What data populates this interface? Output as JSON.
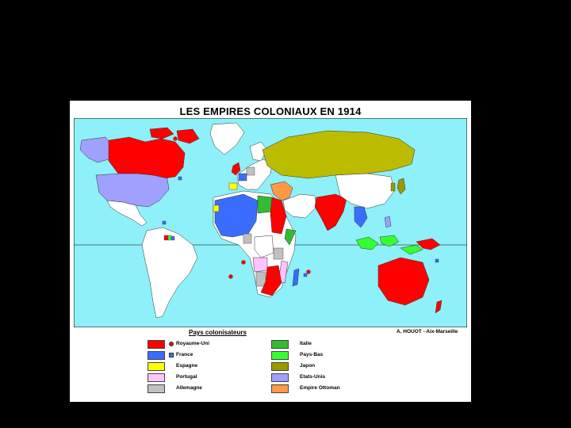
{
  "map": {
    "title": "LES EMPIRES COLONIAUX EN 1914",
    "credit": "A. HOUOT - Aix-Marseille",
    "ocean_color": "#8ef0f8"
  },
  "legend": {
    "title": "Pays colonisateurs",
    "items": [
      {
        "label": "Royaume-Uni",
        "color": "#ff0000",
        "marker": "circle"
      },
      {
        "label": "France",
        "color": "#3a6cff",
        "marker": "square"
      },
      {
        "label": "Espagne",
        "color": "#ffff00",
        "marker": "none"
      },
      {
        "label": "Portugal",
        "color": "#ffc4ff",
        "marker": "none"
      },
      {
        "label": "Allemagne",
        "color": "#c0c0c0",
        "marker": "none"
      },
      {
        "label": "Italie",
        "color": "#33bb33",
        "marker": "none"
      },
      {
        "label": "Pays-Bas",
        "color": "#33ff33",
        "marker": "none"
      },
      {
        "label": "Japon",
        "color": "#999900",
        "marker": "none"
      },
      {
        "label": "Etats-Unis",
        "color": "#a0a0ff",
        "marker": "none"
      },
      {
        "label": "Empire Ottoman",
        "color": "#ff9944",
        "marker": "none"
      }
    ]
  }
}
